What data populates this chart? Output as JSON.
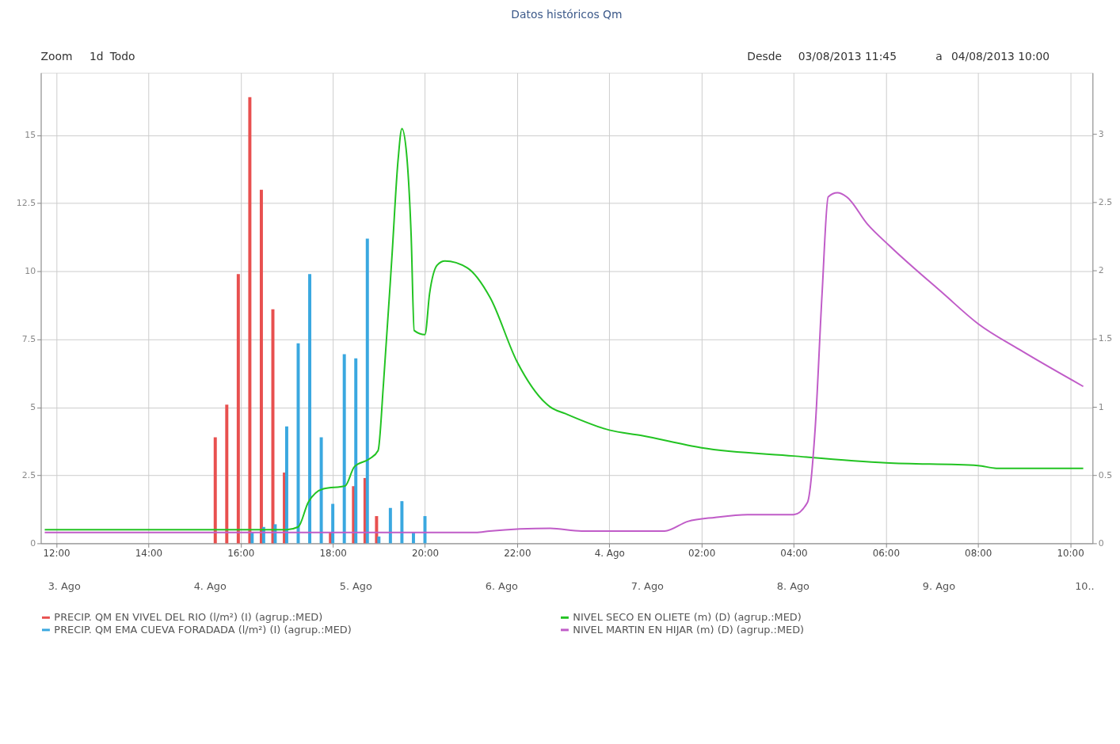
{
  "chart_data": {
    "type": "bar",
    "title": "Datos históricos Qm",
    "xlim": [
      "2013-08-03T11:45",
      "2013-08-04T10:24"
    ],
    "xticks": [
      {
        "value": "2013-08-03T12:00",
        "label": "12:00"
      },
      {
        "value": "2013-08-03T14:00",
        "label": "14:00"
      },
      {
        "value": "2013-08-03T16:00",
        "label": "16:00"
      },
      {
        "value": "2013-08-03T18:00",
        "label": "18:00"
      },
      {
        "value": "2013-08-03T20:00",
        "label": "20:00"
      },
      {
        "value": "2013-08-03T22:00",
        "label": "22:00"
      },
      {
        "value": "2013-08-04T00:00",
        "label": "4. Ago"
      },
      {
        "value": "2013-08-04T02:00",
        "label": "02:00"
      },
      {
        "value": "2013-08-04T04:00",
        "label": "04:00"
      },
      {
        "value": "2013-08-04T06:00",
        "label": "06:00"
      },
      {
        "value": "2013-08-04T08:00",
        "label": "08:00"
      },
      {
        "value": "2013-08-04T10:00",
        "label": "10:00"
      }
    ],
    "ylim": [
      0,
      17.3
    ],
    "yticks": [
      0,
      2.5,
      5,
      7.5,
      10,
      12.5,
      15
    ],
    "y2lim": [
      0,
      3.45
    ],
    "y2ticks": [
      0,
      0.5,
      1,
      1.5,
      2,
      2.5,
      3
    ],
    "grid": true,
    "legend": "bottom",
    "series": [
      {
        "name": "PRECIP. QM EN VIVEL DEL RIO (l/m²) (I) (agrup.:MED)",
        "color": "#e8504f",
        "x": [
          "2013-08-03T15:27",
          "2013-08-03T15:42",
          "2013-08-03T15:57",
          "2013-08-03T16:12",
          "2013-08-03T16:27",
          "2013-08-03T16:42",
          "2013-08-03T16:57",
          "2013-08-03T17:57",
          "2013-08-03T18:27",
          "2013-08-03T18:42",
          "2013-08-03T18:57"
        ],
        "values": [
          3.9,
          5.1,
          9.9,
          16.4,
          13.0,
          8.6,
          2.6,
          0.4,
          2.1,
          2.4,
          1.0
        ]
      },
      {
        "name": "NIVEL SECO EN OLIETE (m) (D) (agrup.:MED)",
        "type": "line",
        "axis": "y2",
        "color": "#22c322",
        "x": [
          "2013-08-03T11:45",
          "2013-08-03T17:00",
          "2013-08-03T17:15",
          "2013-08-03T17:28",
          "2013-08-03T17:48",
          "2013-08-03T18:16",
          "2013-08-03T18:28",
          "2013-08-03T18:48",
          "2013-08-03T18:59",
          "2013-08-03T19:06",
          "2013-08-03T19:17",
          "2013-08-03T19:25",
          "2013-08-03T19:30",
          "2013-08-03T19:36",
          "2013-08-03T19:42",
          "2013-08-03T19:46",
          "2013-08-03T20:00",
          "2013-08-03T20:06",
          "2013-08-03T20:16",
          "2013-08-03T20:26",
          "2013-08-03T20:55",
          "2013-08-03T21:25",
          "2013-08-03T22:00",
          "2013-08-03T22:43",
          "2013-08-03T23:03",
          "2013-08-04T00:00",
          "2013-08-04T00:42",
          "2013-08-04T02:00",
          "2013-08-04T04:00",
          "2013-08-04T06:00",
          "2013-08-04T08:00",
          "2013-08-04T08:24",
          "2013-08-04T10:17"
        ],
        "values": [
          0.1,
          0.1,
          0.12,
          0.3,
          0.4,
          0.42,
          0.56,
          0.62,
          0.68,
          1.17,
          2.1,
          2.81,
          3.04,
          2.86,
          2.26,
          1.56,
          1.53,
          1.83,
          2.04,
          2.07,
          2.02,
          1.8,
          1.33,
          1.0,
          0.95,
          0.83,
          0.79,
          0.7,
          0.64,
          0.59,
          0.57,
          0.55,
          0.55
        ]
      },
      {
        "name": "PRECIP. QM EMA CUEVA FORADADA (l/m²) (I) (agrup.:MED)",
        "color": "#3aa8e0",
        "x": [
          "2013-08-03T16:15",
          "2013-08-03T16:30",
          "2013-08-03T16:45",
          "2013-08-03T17:00",
          "2013-08-03T17:15",
          "2013-08-03T17:30",
          "2013-08-03T17:45",
          "2013-08-03T18:00",
          "2013-08-03T18:15",
          "2013-08-03T18:30",
          "2013-08-03T18:45",
          "2013-08-03T19:00",
          "2013-08-03T19:15",
          "2013-08-03T19:30",
          "2013-08-03T19:45",
          "2013-08-03T20:00"
        ],
        "values": [
          0.4,
          0.6,
          0.7,
          4.3,
          7.35,
          9.9,
          3.9,
          1.45,
          6.95,
          6.8,
          11.2,
          0.25,
          1.3,
          1.55,
          0.4,
          1.0
        ]
      },
      {
        "name": "NIVEL MARTIN EN HIJAR (m) (D) (agrup.:MED)",
        "type": "line",
        "axis": "y2",
        "color": "#c05cc8",
        "x": [
          "2013-08-03T11:45",
          "2013-08-03T14:51",
          "2013-08-03T21:06",
          "2013-08-03T21:24",
          "2013-08-03T22:43",
          "2013-08-03T23:24",
          "2013-08-04T01:12",
          "2013-08-04T01:42",
          "2013-08-04T02:18",
          "2013-08-04T03:00",
          "2013-08-04T04:00",
          "2013-08-04T04:18",
          "2013-08-04T04:28",
          "2013-08-04T04:37",
          "2013-08-04T04:45",
          "2013-08-04T04:57",
          "2013-08-04T05:09",
          "2013-08-04T05:36",
          "2013-08-04T06:05",
          "2013-08-04T07:15",
          "2013-08-04T08:00",
          "2013-08-04T08:54",
          "2013-08-04T10:17"
        ],
        "values": [
          0.08,
          0.08,
          0.08,
          0.09,
          0.11,
          0.09,
          0.09,
          0.16,
          0.19,
          0.21,
          0.21,
          0.3,
          0.84,
          1.83,
          2.54,
          2.57,
          2.54,
          2.34,
          2.18,
          1.83,
          1.61,
          1.42,
          1.15
        ]
      }
    ],
    "annotations": [
      "Zoom",
      "1d",
      "Todo",
      "Desde",
      "03/08/2013 11:45",
      "a",
      "04/08/2013 10:00",
      "3. Ago",
      "4. Ago",
      "5. Ago",
      "6. Ago",
      "7. Ago",
      "8. Ago",
      "9. Ago",
      "10.."
    ]
  }
}
